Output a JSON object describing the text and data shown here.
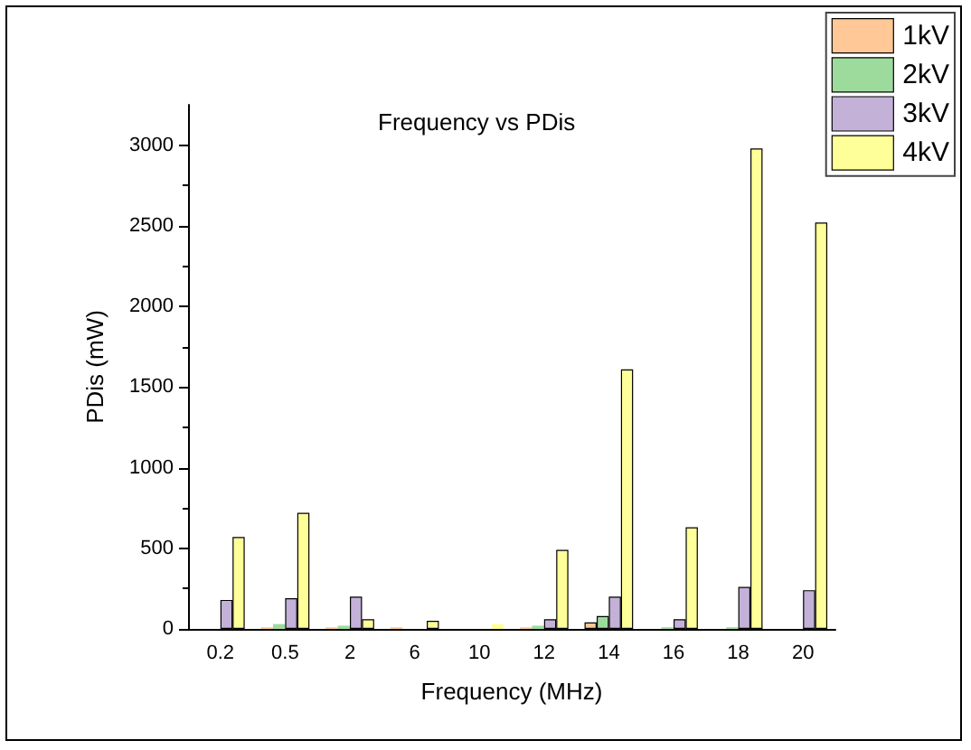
{
  "chart_data": {
    "type": "bar",
    "title": "Frequency vs PDis",
    "xlabel": "Frequency (MHz)",
    "ylabel": "PDis (mW)",
    "categories": [
      "0.2",
      "0.5",
      "2",
      "6",
      "10",
      "12",
      "14",
      "16",
      "18",
      "20"
    ],
    "series": [
      {
        "name": "1kV",
        "color": "#ffc896",
        "values": [
          0,
          10,
          10,
          10,
          0,
          10,
          40,
          0,
          0,
          0
        ]
      },
      {
        "name": "2kV",
        "color": "#9ddb9d",
        "values": [
          0,
          30,
          20,
          0,
          0,
          20,
          80,
          10,
          10,
          0
        ]
      },
      {
        "name": "3kV",
        "color": "#c3b1d8",
        "values": [
          180,
          190,
          200,
          0,
          0,
          60,
          200,
          60,
          260,
          240
        ]
      },
      {
        "name": "4kV",
        "color": "#ffff99",
        "values": [
          570,
          720,
          60,
          50,
          30,
          490,
          1610,
          630,
          2980,
          2520
        ]
      }
    ],
    "ylim": [
      0,
      3250
    ],
    "yticks": [
      0,
      500,
      1000,
      1500,
      2000,
      2500,
      3000
    ],
    "grid": false,
    "legend": "top right"
  }
}
